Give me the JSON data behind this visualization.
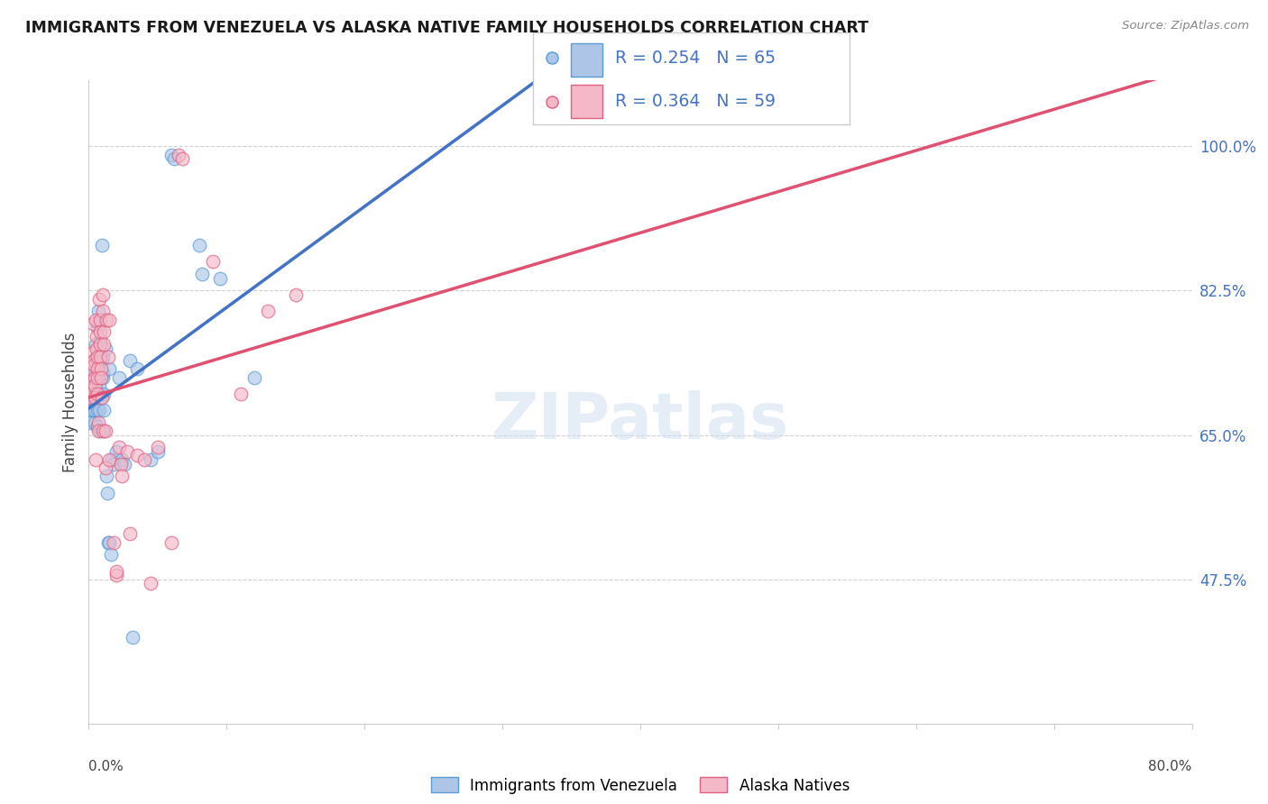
{
  "title": "IMMIGRANTS FROM VENEZUELA VS ALASKA NATIVE FAMILY HOUSEHOLDS CORRELATION CHART",
  "source": "Source: ZipAtlas.com",
  "ylabel": "Family Households",
  "ytick_labels": [
    "47.5%",
    "65.0%",
    "82.5%",
    "100.0%"
  ],
  "ytick_vals": [
    47.5,
    65.0,
    82.5,
    100.0
  ],
  "xlim": [
    0.0,
    80.0
  ],
  "ylim": [
    30.0,
    108.0
  ],
  "xtick_left_label": "0.0%",
  "xtick_right_label": "80.0%",
  "legend1_R": "0.254",
  "legend1_N": "65",
  "legend2_R": "0.364",
  "legend2_N": "59",
  "blue_color": "#adc6e8",
  "blue_edge": "#5b9bd5",
  "pink_color": "#f4b8c8",
  "pink_edge": "#e06080",
  "trendline_blue_color": "#4472c4",
  "trendline_pink_color": "#e05070",
  "trendline_dash_color": "#adc6e8",
  "watermark": "ZIPatlas",
  "blue_scatter": [
    [
      0.1,
      69.5
    ],
    [
      0.15,
      68.0
    ],
    [
      0.2,
      72.0
    ],
    [
      0.2,
      66.5
    ],
    [
      0.3,
      71.0
    ],
    [
      0.3,
      69.5
    ],
    [
      0.3,
      68.0
    ],
    [
      0.35,
      72.0
    ],
    [
      0.4,
      73.0
    ],
    [
      0.4,
      69.5
    ],
    [
      0.4,
      68.0
    ],
    [
      0.45,
      66.5
    ],
    [
      0.45,
      72.0
    ],
    [
      0.5,
      73.5
    ],
    [
      0.5,
      70.0
    ],
    [
      0.5,
      76.0
    ],
    [
      0.55,
      74.5
    ],
    [
      0.55,
      73.0
    ],
    [
      0.6,
      78.0
    ],
    [
      0.6,
      69.5
    ],
    [
      0.6,
      66.0
    ],
    [
      0.65,
      68.0
    ],
    [
      0.7,
      80.0
    ],
    [
      0.7,
      78.5
    ],
    [
      0.7,
      74.0
    ],
    [
      0.75,
      71.0
    ],
    [
      0.75,
      68.0
    ],
    [
      0.8,
      65.5
    ],
    [
      0.8,
      76.5
    ],
    [
      0.85,
      74.0
    ],
    [
      0.85,
      72.0
    ],
    [
      0.9,
      70.0
    ],
    [
      0.9,
      69.5
    ],
    [
      0.95,
      88.0
    ],
    [
      0.95,
      74.0
    ],
    [
      1.0,
      72.0
    ],
    [
      1.0,
      74.5
    ],
    [
      1.0,
      72.5
    ],
    [
      1.1,
      70.0
    ],
    [
      1.1,
      68.0
    ],
    [
      1.1,
      65.5
    ],
    [
      1.2,
      75.5
    ],
    [
      1.3,
      60.0
    ],
    [
      1.35,
      58.0
    ],
    [
      1.4,
      52.0
    ],
    [
      1.5,
      73.0
    ],
    [
      1.5,
      52.0
    ],
    [
      1.6,
      50.5
    ],
    [
      1.7,
      62.0
    ],
    [
      1.8,
      61.5
    ],
    [
      2.0,
      63.0
    ],
    [
      2.2,
      72.0
    ],
    [
      2.4,
      62.0
    ],
    [
      2.6,
      61.5
    ],
    [
      3.0,
      74.0
    ],
    [
      3.2,
      40.5
    ],
    [
      3.5,
      73.0
    ],
    [
      4.5,
      62.0
    ],
    [
      5.0,
      63.0
    ],
    [
      6.0,
      99.0
    ],
    [
      6.2,
      98.5
    ],
    [
      8.0,
      88.0
    ],
    [
      8.2,
      84.5
    ],
    [
      9.5,
      84.0
    ],
    [
      12.0,
      72.0
    ]
  ],
  "pink_scatter": [
    [
      0.1,
      69.5
    ],
    [
      0.15,
      73.0
    ],
    [
      0.2,
      71.5
    ],
    [
      0.2,
      70.0
    ],
    [
      0.3,
      78.5
    ],
    [
      0.3,
      75.0
    ],
    [
      0.35,
      74.0
    ],
    [
      0.35,
      73.5
    ],
    [
      0.4,
      72.0
    ],
    [
      0.4,
      71.0
    ],
    [
      0.45,
      69.5
    ],
    [
      0.5,
      62.0
    ],
    [
      0.5,
      79.0
    ],
    [
      0.55,
      77.0
    ],
    [
      0.55,
      75.5
    ],
    [
      0.6,
      74.5
    ],
    [
      0.6,
      73.0
    ],
    [
      0.65,
      72.0
    ],
    [
      0.65,
      70.0
    ],
    [
      0.7,
      66.5
    ],
    [
      0.7,
      65.5
    ],
    [
      0.75,
      81.5
    ],
    [
      0.8,
      79.0
    ],
    [
      0.8,
      77.5
    ],
    [
      0.85,
      76.0
    ],
    [
      0.85,
      74.5
    ],
    [
      0.9,
      73.0
    ],
    [
      0.9,
      72.0
    ],
    [
      0.95,
      69.5
    ],
    [
      1.0,
      65.5
    ],
    [
      1.0,
      82.0
    ],
    [
      1.0,
      80.0
    ],
    [
      1.1,
      77.5
    ],
    [
      1.1,
      76.0
    ],
    [
      1.2,
      65.5
    ],
    [
      1.2,
      61.0
    ],
    [
      1.3,
      79.0
    ],
    [
      1.4,
      74.5
    ],
    [
      1.5,
      62.0
    ],
    [
      1.5,
      79.0
    ],
    [
      1.8,
      52.0
    ],
    [
      2.0,
      48.0
    ],
    [
      2.0,
      48.5
    ],
    [
      2.2,
      63.5
    ],
    [
      2.3,
      61.5
    ],
    [
      2.4,
      60.0
    ],
    [
      2.8,
      63.0
    ],
    [
      3.0,
      53.0
    ],
    [
      3.5,
      62.5
    ],
    [
      4.0,
      62.0
    ],
    [
      4.5,
      47.0
    ],
    [
      5.0,
      63.5
    ],
    [
      6.0,
      52.0
    ],
    [
      6.5,
      99.0
    ],
    [
      6.8,
      98.5
    ],
    [
      9.0,
      86.0
    ],
    [
      11.0,
      70.0
    ],
    [
      13.0,
      80.0
    ],
    [
      15.0,
      82.0
    ]
  ]
}
